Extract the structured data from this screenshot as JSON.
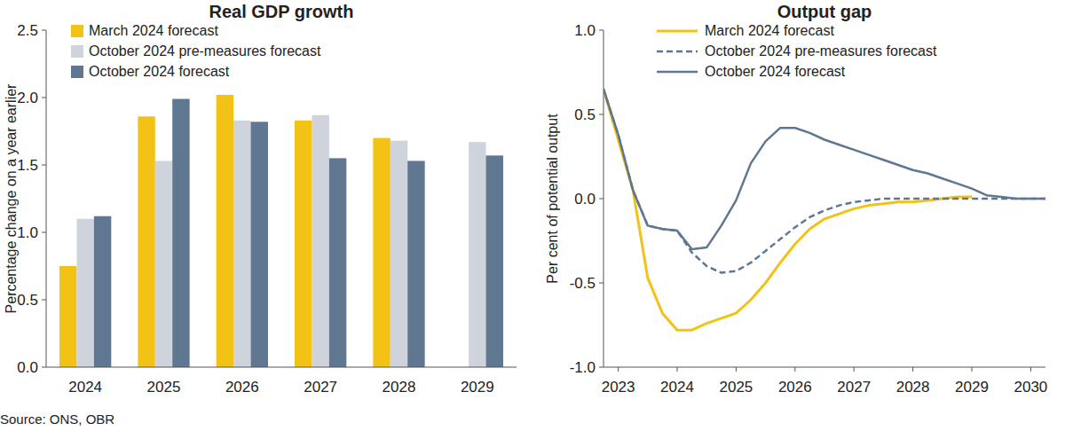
{
  "chart_data": [
    {
      "type": "bar",
      "title": "Real GDP growth",
      "y_label": "Percentage change on a year earlier",
      "categories": [
        "2024",
        "2025",
        "2026",
        "2027",
        "2028",
        "2029"
      ],
      "series": [
        {
          "name": "March 2024 forecast",
          "color": "#f2c314",
          "values": [
            0.75,
            1.86,
            2.02,
            1.83,
            1.7,
            null
          ]
        },
        {
          "name": "October 2024 pre-measures forecast",
          "color": "#cfd3dc",
          "values": [
            1.1,
            1.53,
            1.83,
            1.87,
            1.68,
            1.67
          ]
        },
        {
          "name": "October 2024 forecast",
          "color": "#5f7791",
          "values": [
            1.12,
            1.99,
            1.82,
            1.55,
            1.53,
            1.57
          ]
        }
      ],
      "ylim": [
        0,
        2.5
      ],
      "yticks": [
        {
          "value": 0,
          "label": "0.0"
        },
        0.5,
        {
          "value": 1,
          "label": "1.0"
        },
        1.5,
        {
          "value": 2,
          "label": "2.0"
        },
        2.5
      ],
      "grid": false,
      "legend": "upper left"
    },
    {
      "type": "line",
      "title": "Output gap",
      "y_label": "Per cent of potential output",
      "x": [
        2022.75,
        2023,
        2023.25,
        2023.5,
        2023.75,
        2024,
        2024.25,
        2024.5,
        2024.75,
        2025,
        2025.25,
        2025.5,
        2025.75,
        2026,
        2026.25,
        2026.5,
        2026.75,
        2027,
        2027.25,
        2027.5,
        2027.75,
        2028,
        2028.25,
        2028.5,
        2028.75,
        2029,
        2029.25,
        2029.5,
        2029.75,
        2030,
        2030.25
      ],
      "xlim": [
        2022.75,
        2030.25
      ],
      "xticks": [
        2023,
        2024,
        2025,
        2026,
        2027,
        2028,
        2029,
        2030
      ],
      "ylim": [
        -1,
        1
      ],
      "yticks": [
        {
          "value": -1,
          "label": "-1.0"
        },
        -0.5,
        {
          "value": 0,
          "label": "0.0"
        },
        0.5,
        {
          "value": 1,
          "label": "1.0"
        }
      ],
      "series": [
        {
          "name": "March 2024 forecast",
          "color": "#f2c314",
          "line_style": "solid",
          "values": [
            0.65,
            0.35,
            0.05,
            -0.47,
            -0.68,
            -0.78,
            -0.78,
            -0.74,
            -0.71,
            -0.68,
            -0.6,
            -0.5,
            -0.38,
            -0.27,
            -0.18,
            -0.12,
            -0.09,
            -0.06,
            -0.04,
            -0.03,
            -0.02,
            -0.02,
            -0.01,
            0.0,
            0.01,
            0.01,
            null,
            null,
            null,
            null,
            null
          ]
        },
        {
          "name": "October 2024 pre-measures forecast",
          "color": "#5f7791",
          "line_style": "dashed",
          "values": [
            0.65,
            0.38,
            0.05,
            -0.16,
            -0.18,
            -0.19,
            -0.32,
            -0.4,
            -0.44,
            -0.43,
            -0.38,
            -0.31,
            -0.24,
            -0.17,
            -0.11,
            -0.07,
            -0.04,
            -0.02,
            -0.01,
            0.0,
            0.0,
            0.0,
            0.0,
            0.0,
            0.0,
            0.0,
            0.0,
            0.0,
            0.0,
            0.0,
            0.0
          ]
        },
        {
          "name": "October 2024 forecast",
          "color": "#5f7791",
          "line_style": "solid",
          "values": [
            0.65,
            0.38,
            0.05,
            -0.16,
            -0.18,
            -0.19,
            -0.3,
            -0.29,
            -0.16,
            -0.01,
            0.21,
            0.34,
            0.42,
            0.42,
            0.39,
            0.35,
            0.32,
            0.29,
            0.26,
            0.23,
            0.2,
            0.17,
            0.15,
            0.12,
            0.09,
            0.06,
            0.02,
            0.01,
            0.0,
            0.0,
            0.0
          ]
        }
      ],
      "grid": false,
      "legend": "upper right"
    }
  ],
  "source": "Source: ONS, OBR"
}
